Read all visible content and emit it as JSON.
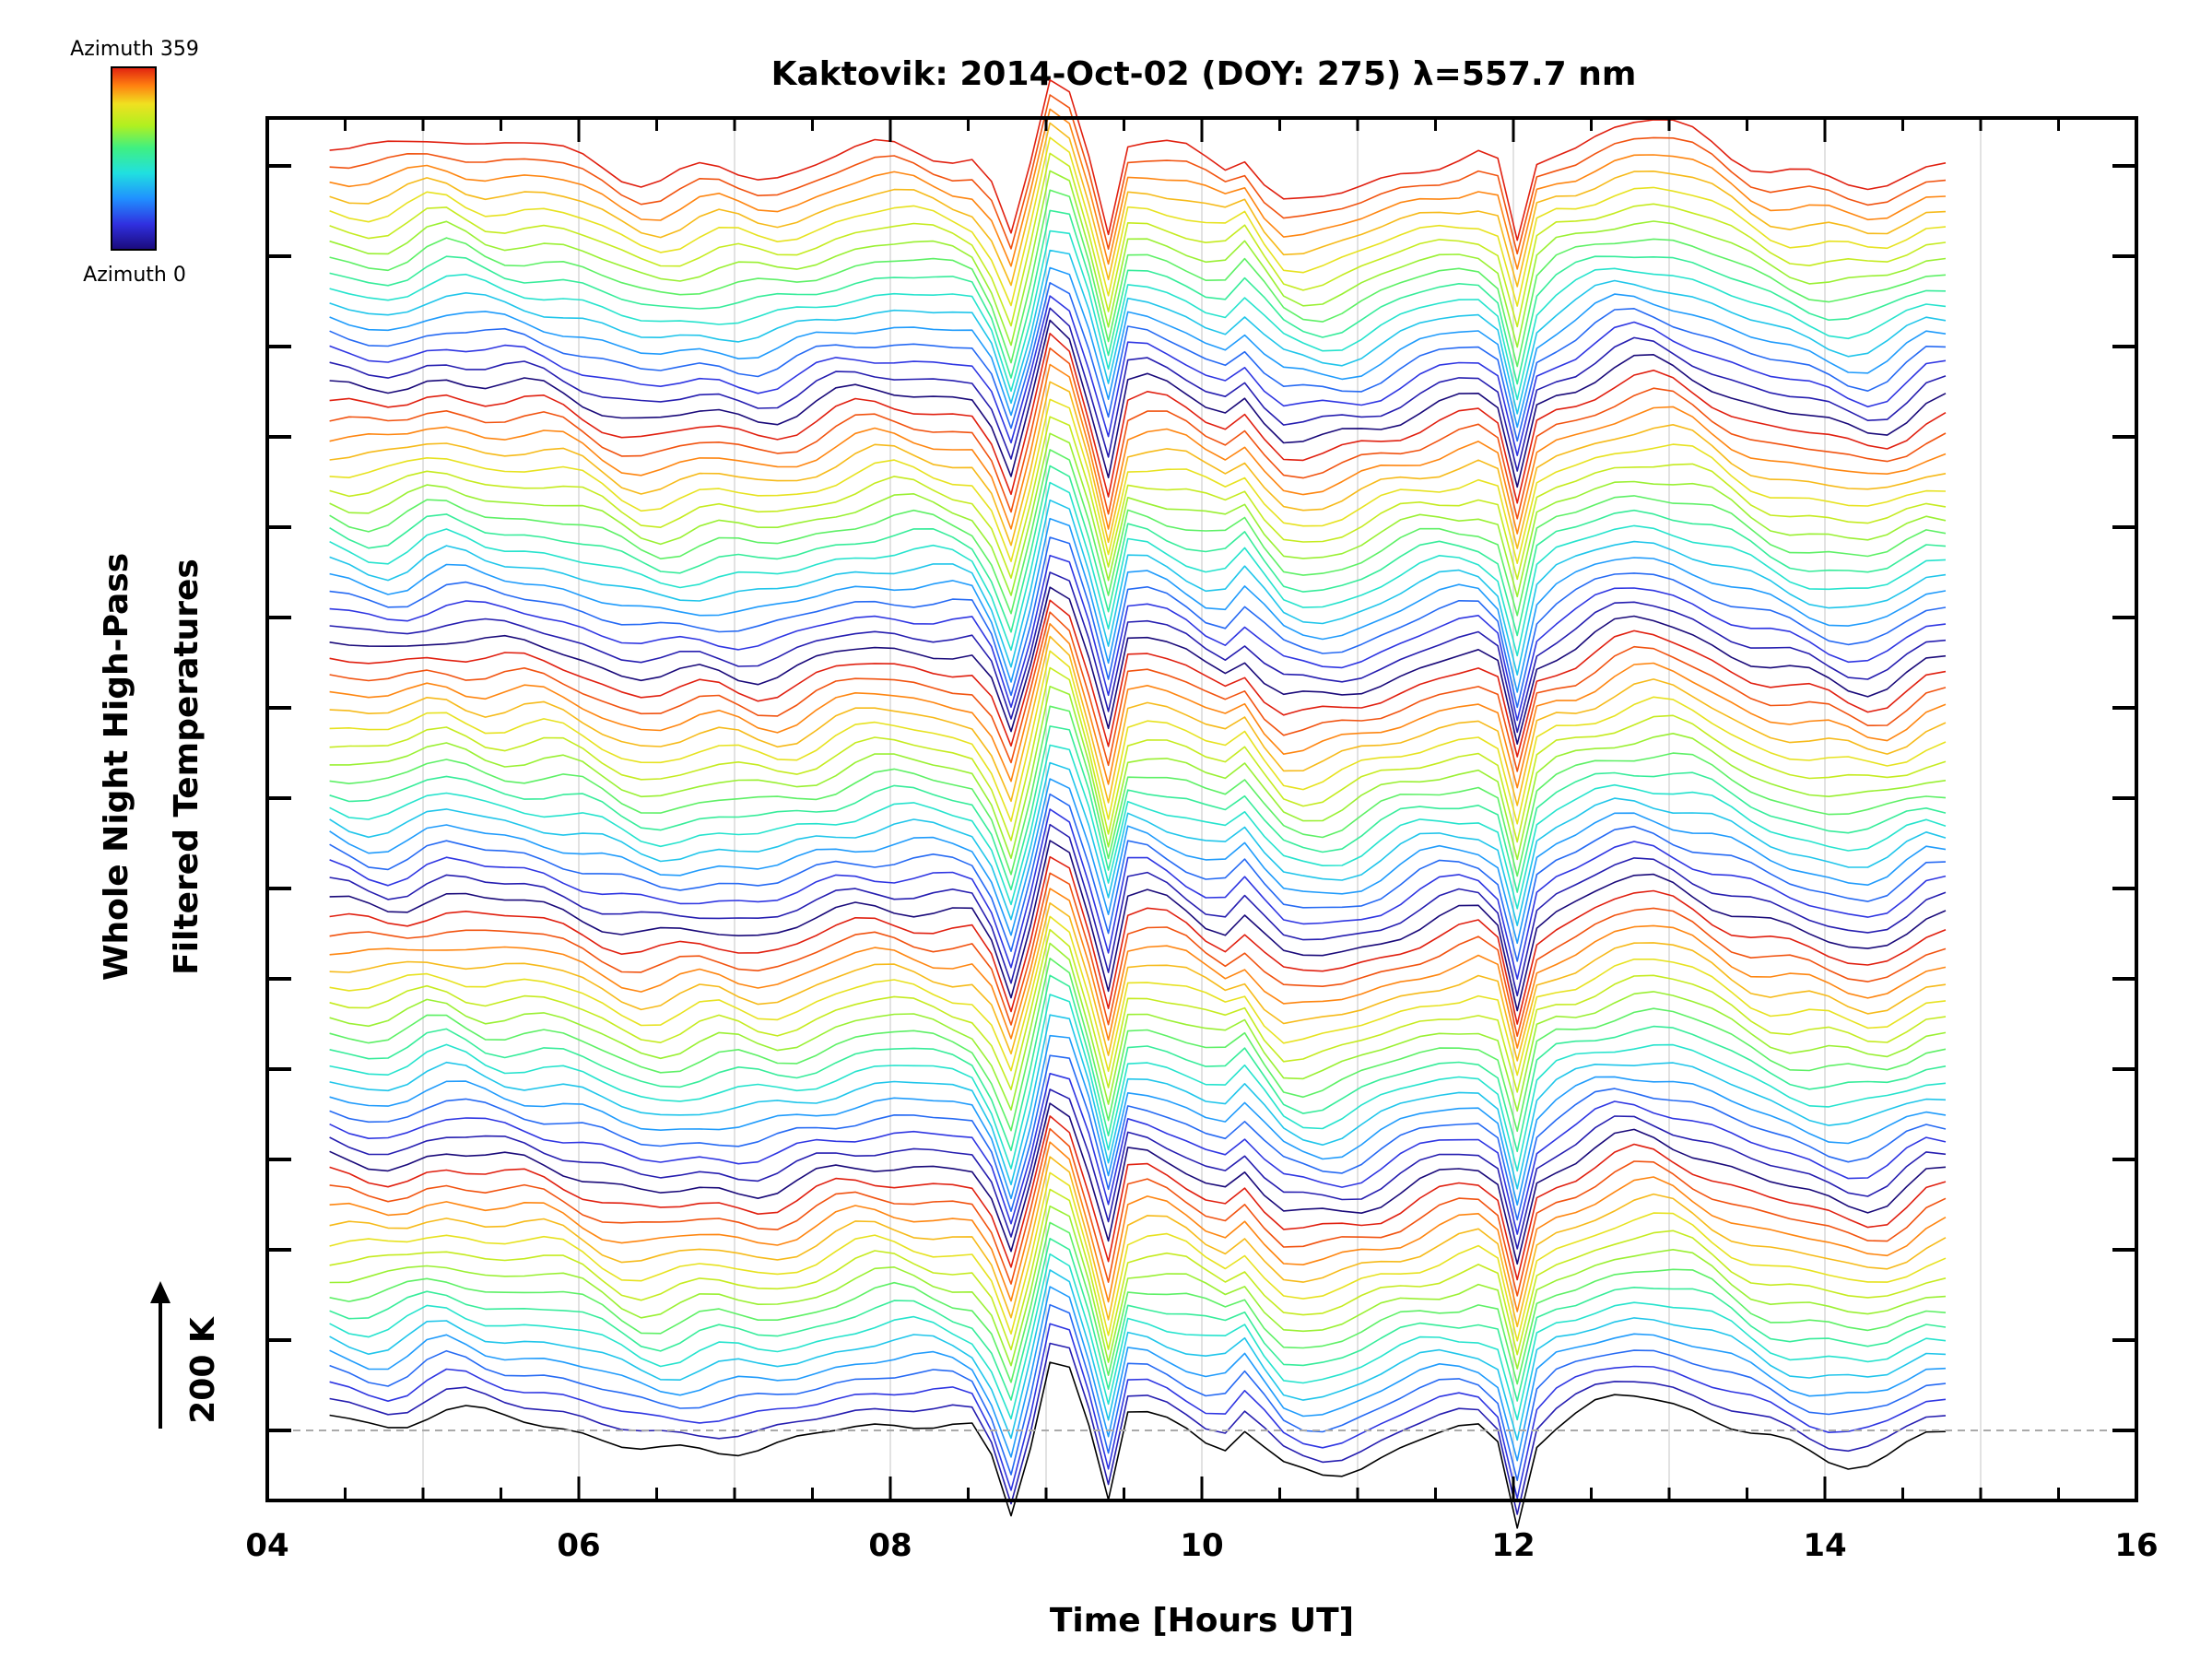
{
  "chart_data": {
    "type": "line",
    "title": "Kaktovik: 2014-Oct-02 (DOY: 275) λ=557.7 nm",
    "xlabel": "Time [Hours UT]",
    "ylabel_line1": "Whole Night High-Pass",
    "ylabel_line2": "Filtered Temperatures",
    "scale_bar_label": "200 K",
    "xlim": [
      4,
      16
    ],
    "x_ticks": [
      "04",
      "06",
      "08",
      "10",
      "12",
      "14",
      "16"
    ],
    "x_tick_values": [
      4,
      6,
      8,
      10,
      12,
      14,
      16
    ],
    "data_time_range": [
      4.4,
      14.85
    ],
    "grid": "vertical-hourly",
    "series_count": 80,
    "colorbar": {
      "top_label": "Azimuth 359",
      "bottom_label": "Azimuth 0",
      "colormap": [
        "#1a0a7a",
        "#3030e0",
        "#2090ff",
        "#20e0e0",
        "#40f080",
        "#b0f020",
        "#f0e020",
        "#ff8010",
        "#e02010"
      ]
    },
    "baseline_color": "#000000"
  }
}
